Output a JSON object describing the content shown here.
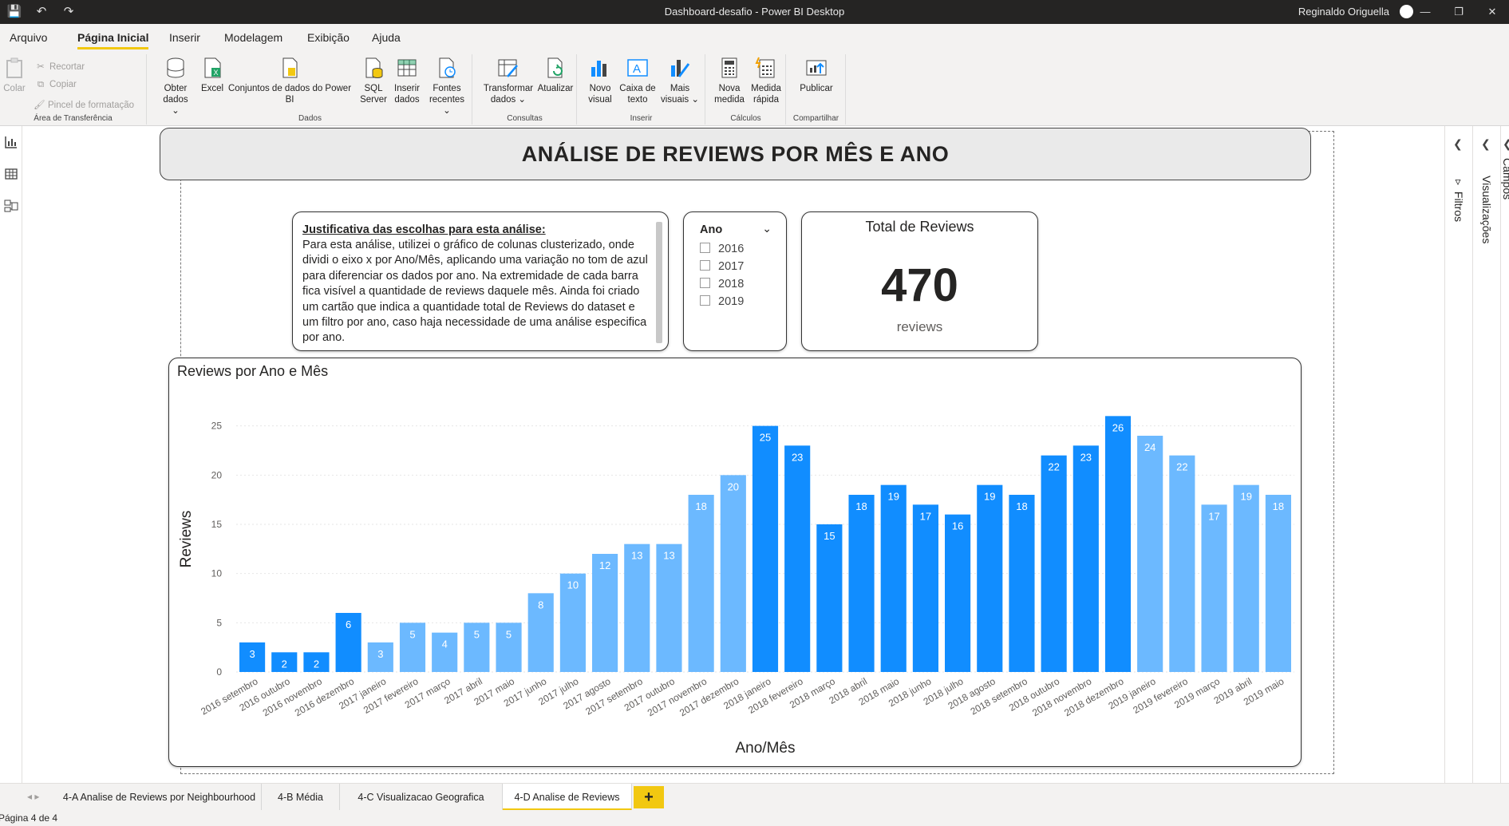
{
  "titlebar": {
    "title": "Dashboard-desafio - Power BI Desktop",
    "user": "Reginaldo Origuella",
    "save_icon": "save-icon",
    "undo_icon": "undo-icon",
    "redo_icon": "redo-icon"
  },
  "menu": {
    "tabs": [
      {
        "label": "Arquivo"
      },
      {
        "label": "Página Inicial"
      },
      {
        "label": "Inserir"
      },
      {
        "label": "Modelagem"
      },
      {
        "label": "Exibição"
      },
      {
        "label": "Ajuda"
      }
    ]
  },
  "ribbon": {
    "clipboard": {
      "paste": "Colar",
      "cut": "Recortar",
      "copy": "Copiar",
      "format_painter": "Pincel de formatação",
      "label": "Área de Transferência"
    },
    "dados": {
      "label": "Dados",
      "get_data_1": "Obter",
      "get_data_2": "dados ⌄",
      "excel": "Excel",
      "datasets_1": "Conjuntos de dados do Power",
      "datasets_2": "BI",
      "sql_1": "SQL",
      "sql_2": "Server",
      "enter_1": "Inserir",
      "enter_2": "dados",
      "recent_1": "Fontes",
      "recent_2": "recentes ⌄"
    },
    "consultas": {
      "label": "Consultas",
      "transform_1": "Transformar",
      "transform_2": "dados ⌄",
      "refresh": "Atualizar"
    },
    "inserir": {
      "label": "Inserir",
      "new_visual_1": "Novo",
      "new_visual_2": "visual",
      "textbox_1": "Caixa de",
      "textbox_2": "texto",
      "more_visuals_1": "Mais",
      "more_visuals_2": "visuais ⌄"
    },
    "calculos": {
      "label": "Cálculos",
      "new_measure_1": "Nova",
      "new_measure_2": "medida",
      "quick_measure_1": "Medida",
      "quick_measure_2": "rápida"
    },
    "compartilhar": {
      "label": "Compartilhar",
      "publish": "Publicar"
    }
  },
  "report": {
    "banner_title": "ANÁLISE DE REVIEWS POR MÊS E ANO",
    "justification": {
      "heading": "Justificativa das escolhas para esta análise:",
      "body": "Para esta análise, utilizei o gráfico de colunas clusterizado, onde dividi o eixo x por Ano/Mês, aplicando uma variação no tom de azul para diferenciar os dados por ano. Na extremidade de cada barra fica visível a quantidade de reviews daquele mês. Ainda foi criado um cartão que indica a quantidade total de Reviews do dataset e um filtro por ano, caso haja necessidade de uma análise especifica por ano."
    },
    "slicer": {
      "title": "Ano",
      "options": [
        "2016",
        "2017",
        "2018",
        "2019"
      ]
    },
    "kpi": {
      "title": "Total de Reviews",
      "value": "470",
      "unit": "reviews"
    },
    "chart_title": "Reviews por Ano e Mês"
  },
  "chart_data": {
    "type": "bar",
    "title": "Reviews por Ano e Mês",
    "xlabel": "Ano/Mês",
    "ylabel": "Reviews",
    "ylim": [
      0,
      27
    ],
    "yticks": [
      0,
      5,
      10,
      15,
      20,
      25
    ],
    "grid": true,
    "categories": [
      "2016 setembro",
      "2016 outubro",
      "2016 novembro",
      "2016 dezembro",
      "2017 janeiro",
      "2017 fevereiro",
      "2017 março",
      "2017 abril",
      "2017 maio",
      "2017 junho",
      "2017 julho",
      "2017 agosto",
      "2017 setembro",
      "2017 outubro",
      "2017 novembro",
      "2017 dezembro",
      "2018 janeiro",
      "2018 fevereiro",
      "2018 março",
      "2018 abril",
      "2018 maio",
      "2018 junho",
      "2018 julho",
      "2018 agosto",
      "2018 setembro",
      "2018 outubro",
      "2018 novembro",
      "2018 dezembro",
      "2019 janeiro",
      "2019 fevereiro",
      "2019 março",
      "2019 abril",
      "2019 maio"
    ],
    "values": [
      3,
      2,
      2,
      6,
      3,
      5,
      4,
      5,
      5,
      8,
      10,
      12,
      13,
      13,
      18,
      20,
      25,
      23,
      15,
      18,
      19,
      17,
      16,
      19,
      18,
      22,
      23,
      26,
      24,
      22,
      17,
      19,
      18
    ],
    "bar_colors": [
      "#118dff",
      "#118dff",
      "#118dff",
      "#118dff",
      "#6cb9ff",
      "#6cb9ff",
      "#6cb9ff",
      "#6cb9ff",
      "#6cb9ff",
      "#6cb9ff",
      "#6cb9ff",
      "#6cb9ff",
      "#6cb9ff",
      "#6cb9ff",
      "#6cb9ff",
      "#6cb9ff",
      "#118dff",
      "#118dff",
      "#118dff",
      "#118dff",
      "#118dff",
      "#118dff",
      "#118dff",
      "#118dff",
      "#118dff",
      "#118dff",
      "#118dff",
      "#118dff",
      "#6cb9ff",
      "#6cb9ff",
      "#6cb9ff",
      "#6cb9ff",
      "#6cb9ff"
    ]
  },
  "right_panes": {
    "filters": "Filtros",
    "visualizations": "Visualizações",
    "fields": "Campos"
  },
  "page_tabs": {
    "tabs": [
      {
        "label": "4-A Analise de Reviews por Neighbourhood"
      },
      {
        "label": "4-B Média"
      },
      {
        "label": "4-C Visualizacao Geografica"
      },
      {
        "label": "4-D Analise de Reviews"
      }
    ],
    "add": "+"
  },
  "status": {
    "page": "Página 4 de 4"
  },
  "colors": {
    "accent": "#f2c811",
    "bar_dark": "#118dff",
    "bar_light": "#6cb9ff"
  }
}
